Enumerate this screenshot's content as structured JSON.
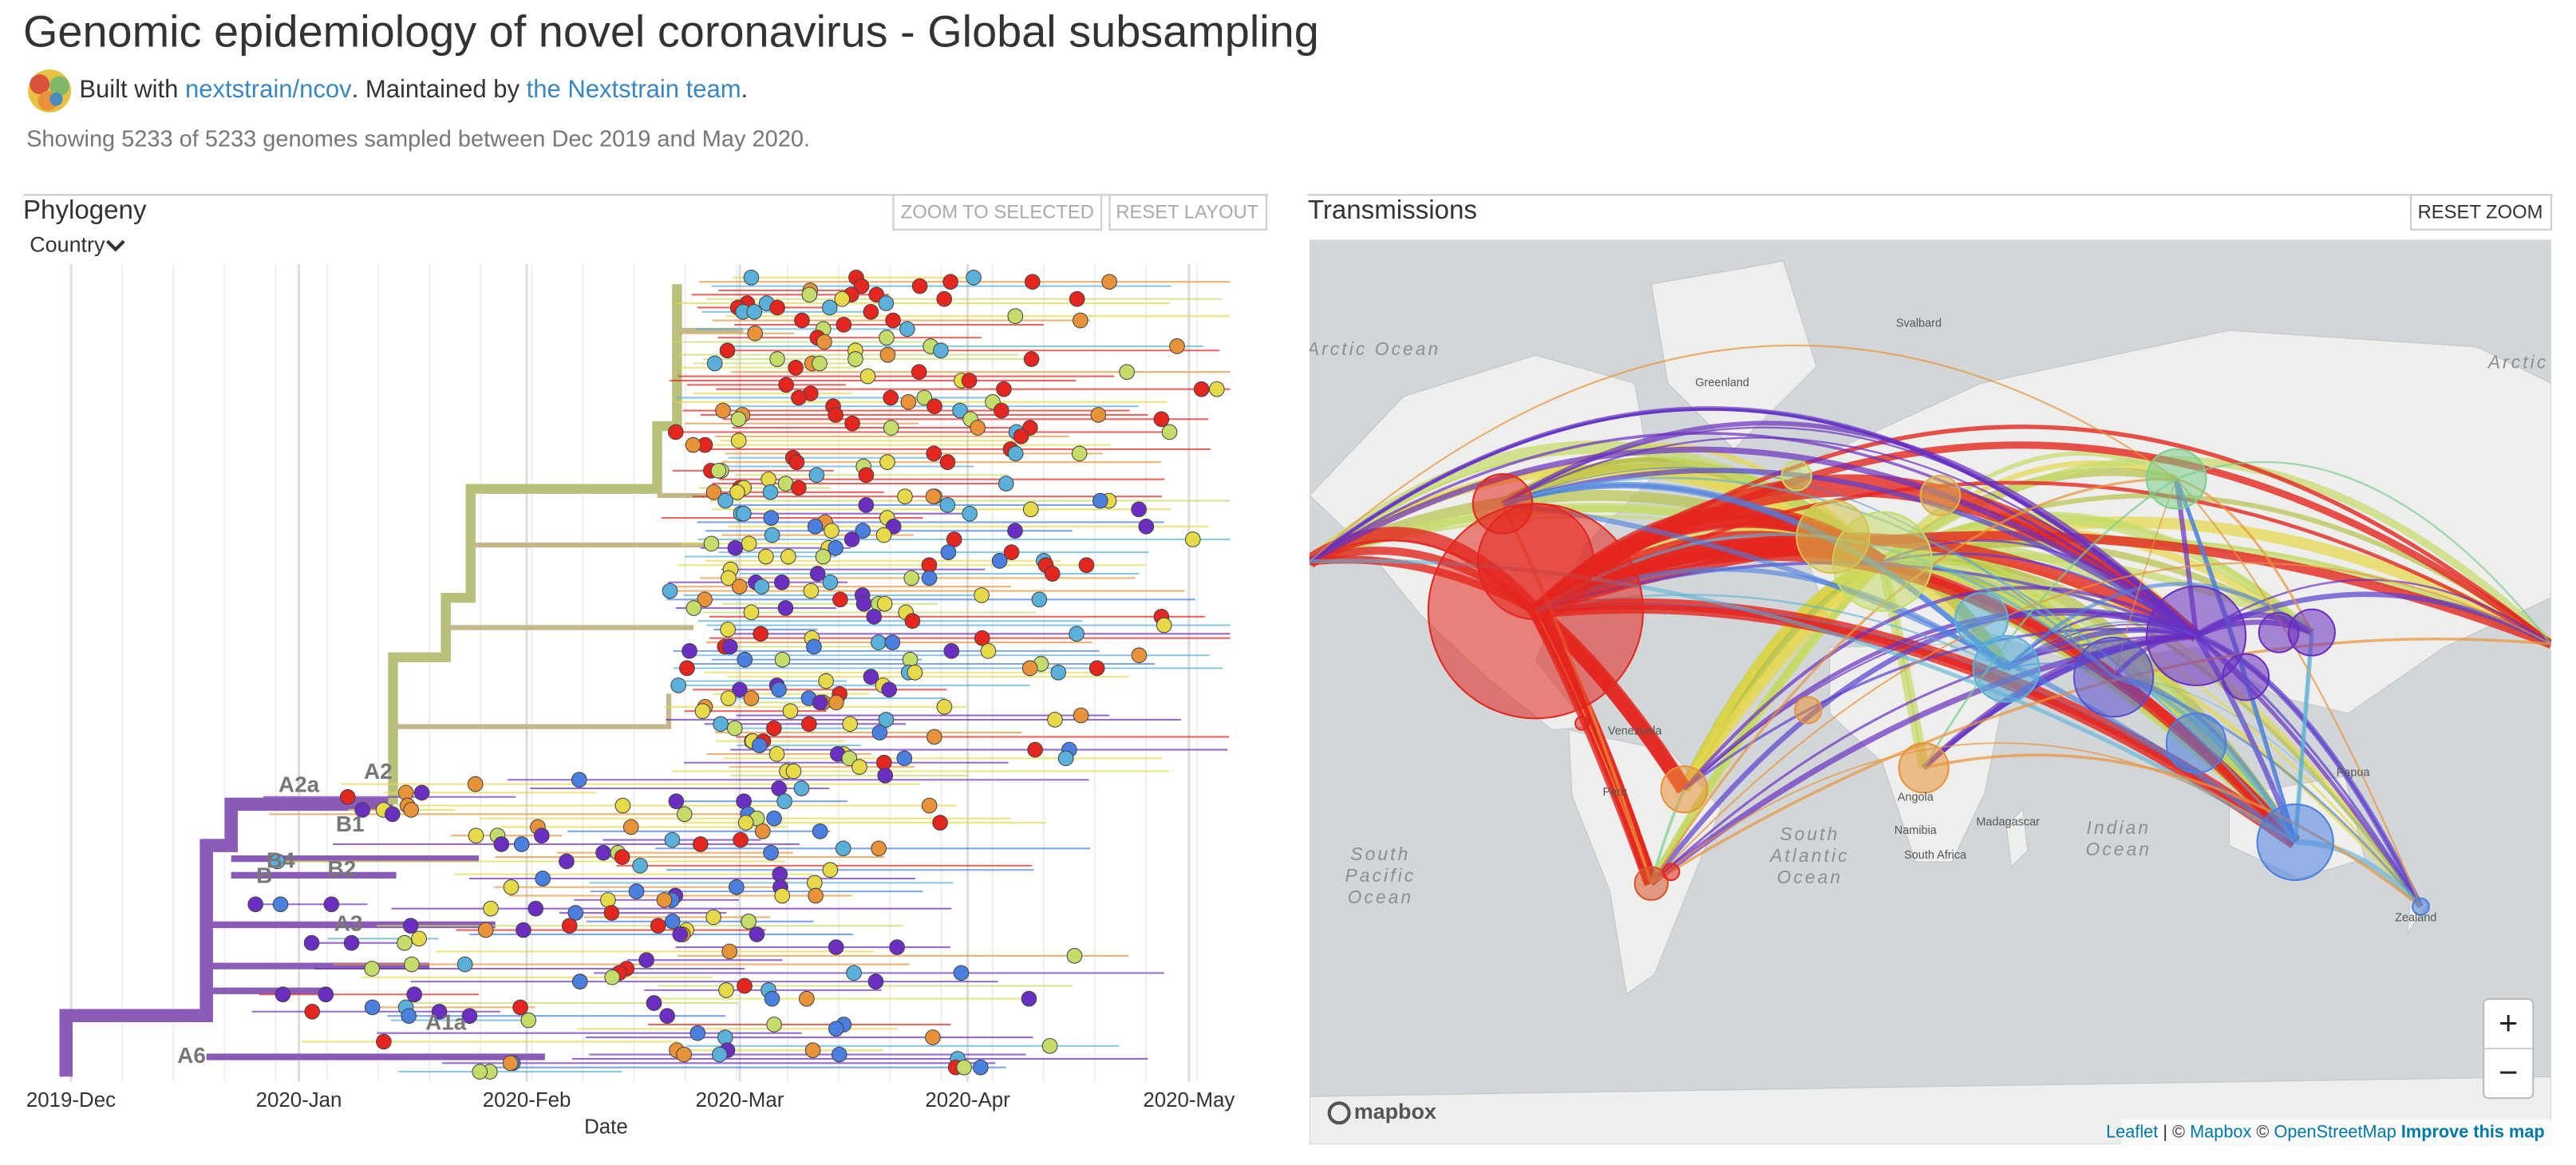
{
  "header": {
    "title": "Genomic epidemiology of novel coronavirus - Global subsampling",
    "byline": [
      "Built with",
      "nextstrain/ncov",
      ". Maintained by",
      "the Nextstrain team",
      "."
    ],
    "summary": "Showing 5233 of 5233 genomes sampled between Dec 2019 and May 2020."
  },
  "phylogeny": {
    "title": "Phylogeny",
    "buttons": [
      "ZOOM TO SELECTED",
      "RESET LAYOUT"
    ],
    "color_by": "Country",
    "x_ticks": [
      "2019-Dec",
      "2020-Jan",
      "2020-Feb",
      "2020-Mar",
      "2020-Apr",
      "2020-May"
    ],
    "x_label": "Date",
    "clades": [
      "A2a",
      "A2",
      "B1",
      "B4",
      "B2",
      "B",
      "A3",
      "A1a",
      "A6"
    ]
  },
  "transmissions": {
    "title": "Transmissions",
    "button": "RESET ZOOM",
    "labels": [
      [
        "Arctic Ocean"
      ],
      [
        "Greenland"
      ],
      [
        "Svalbard"
      ],
      [
        "Arctic"
      ],
      [
        "South",
        "Pacific",
        "Ocean"
      ],
      [
        "South",
        "Atlantic",
        "Ocean"
      ],
      [
        "Indian",
        "Ocean"
      ],
      [
        "Madagascar"
      ],
      [
        "Namibia"
      ],
      [
        "Angola"
      ],
      [
        "South Africa"
      ],
      [
        "Venezuela"
      ],
      [
        "Peru"
      ],
      [
        "Papua"
      ],
      [
        "Zealand"
      ]
    ],
    "zoom": [
      "+",
      "−"
    ],
    "logo": "mapbox",
    "attribution": [
      "Leaflet",
      "| ©",
      "Mapbox",
      "©",
      "OpenStreetMap",
      "Improve this map"
    ]
  }
}
